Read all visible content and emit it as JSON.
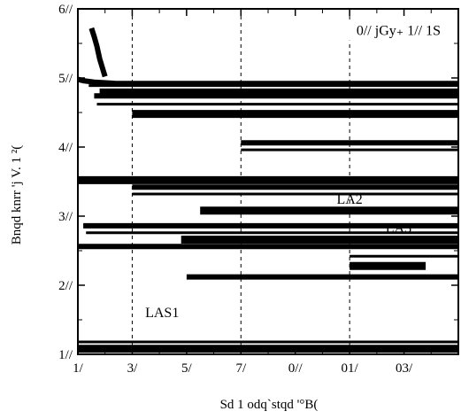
{
  "chart_data": {
    "type": "line",
    "xlabel": "Sd 1 odq`stqd '°B(",
    "ylabel": "Bnqd knrr 'j V. 1 ²(",
    "xlim": [
      0,
      140
    ],
    "ylim": [
      0,
      50
    ],
    "x_ticks": [
      {
        "value": 0,
        "label": "1/"
      },
      {
        "value": 20,
        "label": "3/"
      },
      {
        "value": 40,
        "label": "5/"
      },
      {
        "value": 60,
        "label": "7/"
      },
      {
        "value": 80,
        "label": "0//"
      },
      {
        "value": 100,
        "label": "01/"
      },
      {
        "value": 120,
        "label": "03/"
      }
    ],
    "y_ticks": [
      {
        "value": 0,
        "label": "1//"
      },
      {
        "value": 10,
        "label": "2//"
      },
      {
        "value": 20,
        "label": "3//"
      },
      {
        "value": 30,
        "label": "4//"
      },
      {
        "value": 40,
        "label": "5//"
      },
      {
        "value": 50,
        "label": "6//"
      }
    ],
    "vertical_dashed_lines_x": [
      20,
      60,
      100
    ],
    "annotations": [
      {
        "text": "0// jGy₊ 1// 1S",
        "x": 118,
        "y": 46.2
      },
      {
        "text": "LA2",
        "x": 100,
        "y": 21.8
      },
      {
        "text": "LA3",
        "x": 118,
        "y": 17.6
      },
      {
        "text": "LAS1",
        "x": 31,
        "y": 5.4
      }
    ],
    "series": [
      {
        "x": [
          0,
          2,
          6,
          14,
          140
        ],
        "y": [
          39.8,
          39.6,
          39.4,
          39.2,
          39.2
        ]
      },
      {
        "x": [
          4,
          140
        ],
        "y": [
          38.9,
          38.9
        ]
      },
      {
        "x": [
          8,
          140
        ],
        "y": [
          37.9,
          37.9
        ]
      },
      {
        "x": [
          6,
          140
        ],
        "y": [
          37.4,
          37.4
        ]
      },
      {
        "x": [
          7,
          140
        ],
        "y": [
          36.2,
          36.2
        ]
      },
      {
        "x": [
          20,
          140
        ],
        "y": [
          34.8,
          34.8
        ]
      },
      {
        "x": [
          60,
          140
        ],
        "y": [
          30.6,
          30.6
        ]
      },
      {
        "x": [
          60,
          140
        ],
        "y": [
          29.6,
          29.6
        ]
      },
      {
        "x": [
          0,
          140
        ],
        "y": [
          25.2,
          25.2
        ]
      },
      {
        "x": [
          20,
          140
        ],
        "y": [
          24.2,
          24.2
        ]
      },
      {
        "x": [
          20,
          140
        ],
        "y": [
          23.2,
          23.2
        ]
      },
      {
        "x": [
          45,
          140
        ],
        "y": [
          20.8,
          20.8
        ]
      },
      {
        "x": [
          2,
          140
        ],
        "y": [
          18.6,
          18.6
        ]
      },
      {
        "x": [
          3,
          140
        ],
        "y": [
          17.6,
          17.6
        ]
      },
      {
        "x": [
          38,
          140
        ],
        "y": [
          16.6,
          16.6
        ]
      },
      {
        "x": [
          0,
          140
        ],
        "y": [
          15.6,
          15.6
        ]
      },
      {
        "x": [
          100,
          140
        ],
        "y": [
          14.2,
          14.2
        ]
      },
      {
        "x": [
          100,
          128
        ],
        "y": [
          12.8,
          12.8
        ]
      },
      {
        "x": [
          40,
          140
        ],
        "y": [
          11.2,
          11.2
        ]
      },
      {
        "x": [
          0,
          140
        ],
        "y": [
          1.8,
          1.8
        ]
      },
      {
        "x": [
          0,
          140
        ],
        "y": [
          0.8,
          0.8
        ]
      },
      {
        "x": [
          5,
          6,
          7,
          8,
          10
        ],
        "y": [
          47.2,
          46.0,
          44.6,
          42.8,
          40.2
        ]
      }
    ]
  }
}
